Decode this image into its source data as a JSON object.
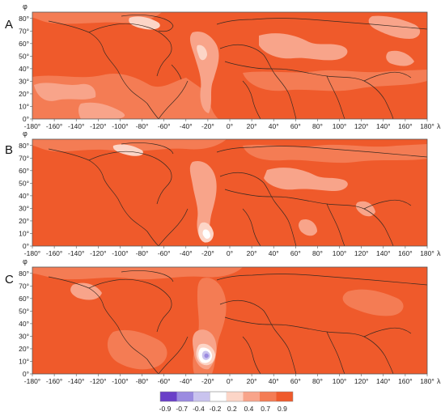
{
  "colors": {
    "level_0.9": "#ef5a2b",
    "level_0.7": "#f47c54",
    "level_0.4": "#f8a48a",
    "level_0.2": "#fcd5c7",
    "level_neg0.2": "#ffffff",
    "level_neg0.4": "#c9c3ee",
    "level_neg0.7": "#9b8be0",
    "level_neg0.9": "#6a3fc8",
    "coastline": "#3a2a22",
    "frame": "#555555"
  },
  "panels": [
    {
      "letter": "A"
    },
    {
      "letter": "B"
    },
    {
      "letter": "C"
    }
  ],
  "axes": {
    "lon_symbol": "λ",
    "lat_symbol": "φ",
    "lon_ticks": [
      "-180°",
      "-160°",
      "-140°",
      "-120°",
      "-100°",
      "-80°",
      "-60°",
      "-40°",
      "-20°",
      "0°",
      "20°",
      "40°",
      "60°",
      "80°",
      "100°",
      "120°",
      "140°",
      "160°",
      "180°"
    ],
    "lat_ticks": [
      "0°",
      "10°",
      "20°",
      "30°",
      "40°",
      "50°",
      "60°",
      "70°",
      "80°"
    ],
    "lon_range": [
      -180,
      180
    ],
    "lat_range": [
      0,
      85
    ]
  },
  "colorbar": {
    "labels": [
      "-0.9",
      "-0.7",
      "-0.4",
      "-0.2",
      "0.2",
      "0.4",
      "0.7",
      "0.9"
    ],
    "swatch_colors": [
      "#6a3fc8",
      "#9b8be0",
      "#c9c3ee",
      "#ffffff",
      "#fcd5c7",
      "#f8a48a",
      "#f47c54",
      "#ef5a2b"
    ]
  }
}
